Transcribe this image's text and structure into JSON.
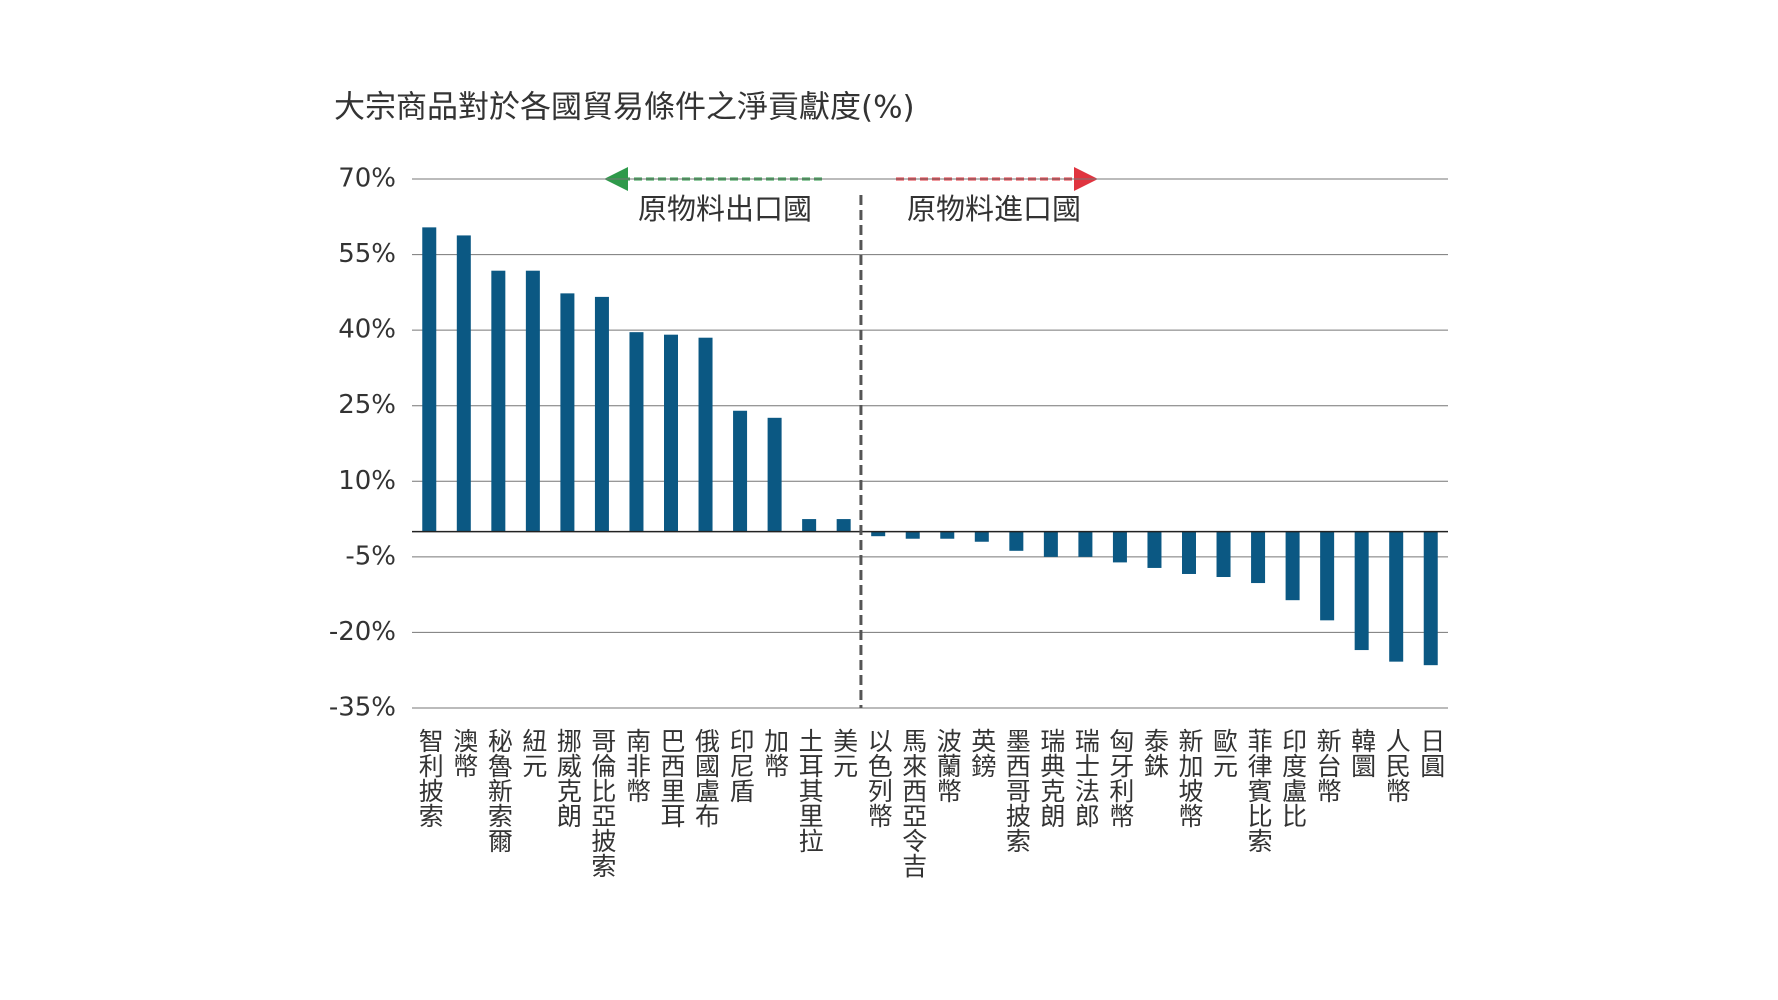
{
  "chart_data": {
    "type": "bar",
    "title": "大宗商品對於各國貿易條件之淨貢獻度(%)",
    "categories": [
      "智利披索",
      "澳幣",
      "秘魯新索爾",
      "紐元",
      "挪威克朗",
      "哥倫比亞披索",
      "南非幣",
      "巴西里耳",
      "俄國盧布",
      "印尼盾",
      "加幣",
      "土耳其里拉",
      "美元",
      "以色列幣",
      "馬來西亞令吉",
      "波蘭幣",
      "英鎊",
      "墨西哥披索",
      "瑞典克朗",
      "瑞士法郎",
      "匈牙利幣",
      "泰銖",
      "新加坡幣",
      "歐元",
      "菲律賓比索",
      "印度盧比",
      "新台幣",
      "韓圜",
      "人民幣",
      "日圓"
    ],
    "values": [
      60.4,
      58.8,
      51.8,
      51.8,
      47.3,
      46.6,
      39.6,
      39.1,
      38.5,
      24.0,
      22.6,
      2.5,
      2.5,
      -0.9,
      -1.4,
      -1.4,
      -2.0,
      -3.8,
      -5.0,
      -5.0,
      -6.1,
      -7.2,
      -8.4,
      -9.0,
      -10.2,
      -13.6,
      -17.6,
      -23.5,
      -25.8,
      -26.5
    ],
    "color": "#0b5883",
    "ylim": [
      -35,
      70
    ],
    "yticks": [
      {
        "value": -35,
        "label": "-35%"
      },
      {
        "value": -20,
        "label": "-20%"
      },
      {
        "value": -5,
        "label": "-5%"
      },
      {
        "value": 10,
        "label": "10%"
      },
      {
        "value": 25,
        "label": "25%"
      },
      {
        "value": 40,
        "label": "40%"
      },
      {
        "value": 55,
        "label": "55%"
      },
      {
        "value": 70,
        "label": "70%"
      }
    ],
    "grid": true,
    "annotations": [
      {
        "text": "原物料出口國",
        "color": "#2e9a4a"
      },
      {
        "text": "原物料進口國",
        "color": "#e0343f"
      }
    ]
  }
}
